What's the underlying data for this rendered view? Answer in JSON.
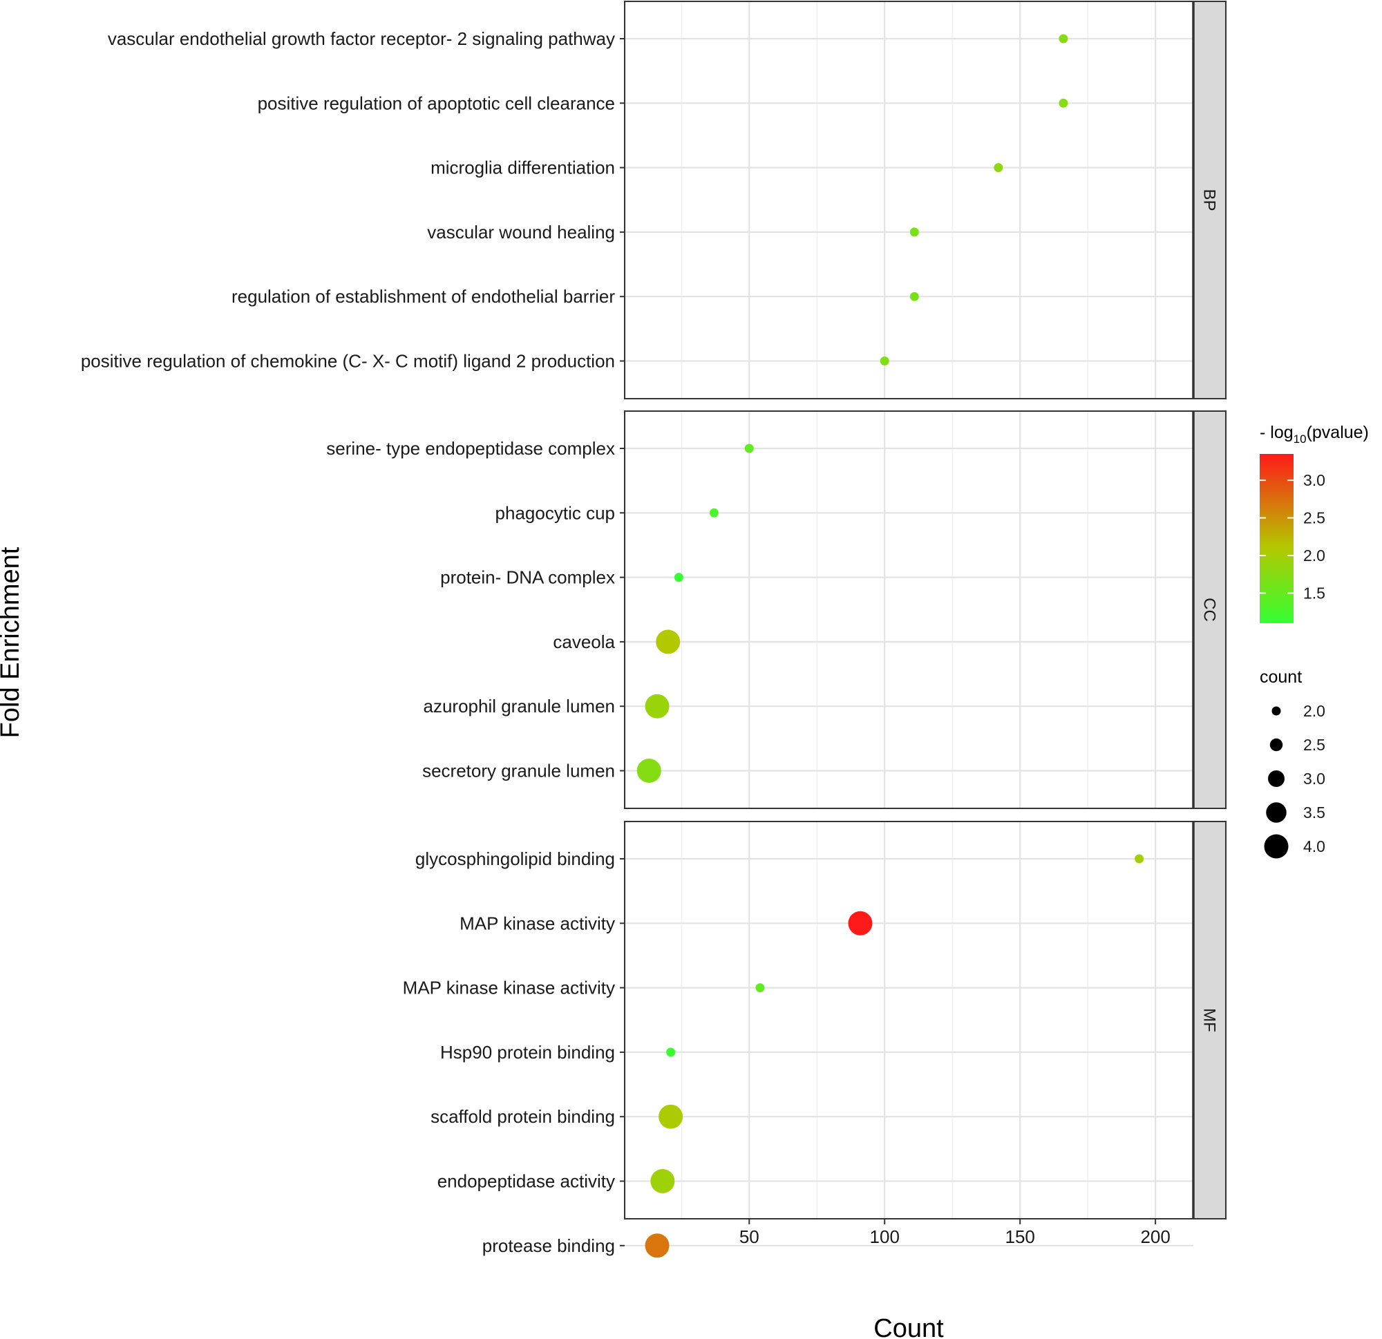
{
  "chart_data": {
    "type": "scatter",
    "xlabel": "Count",
    "ylabel": "Fold Enrichment",
    "xlim": [
      4,
      214
    ],
    "x_ticks": [
      50,
      100,
      150,
      200
    ],
    "grid": true,
    "legend_position": "right",
    "color_legend": {
      "title_prefix": "- log",
      "title_sub": "10",
      "title_suffix": "(pvalue)",
      "min": 1.1,
      "max": 3.35,
      "ticks": [
        3.0,
        2.5,
        2.0,
        1.5
      ],
      "tick_labels": [
        "3.0",
        "2.5",
        "2.0",
        "1.5"
      ],
      "low_color": "#33ff33",
      "mid_color": "#b4c800",
      "high_color": "#ff1a1a"
    },
    "size_legend": {
      "title": "count",
      "values": [
        2.0,
        2.5,
        3.0,
        3.5,
        4.0
      ],
      "labels": [
        "2.0",
        "2.5",
        "3.0",
        "3.5",
        "4.0"
      ]
    },
    "panels": [
      {
        "name": "BP",
        "terms": [
          {
            "label": "vascular endothelial growth factor receptor- 2 signaling pathway",
            "x": 166,
            "count": 2,
            "pvalue": 1.75
          },
          {
            "label": "positive regulation of apoptotic cell clearance",
            "x": 166,
            "count": 2,
            "pvalue": 1.75
          },
          {
            "label": "microglia differentiation",
            "x": 142,
            "count": 2,
            "pvalue": 1.8
          },
          {
            "label": "vascular wound healing",
            "x": 111,
            "count": 2,
            "pvalue": 1.65
          },
          {
            "label": "regulation of establishment of endothelial barrier",
            "x": 111,
            "count": 2,
            "pvalue": 1.65
          },
          {
            "label": "positive regulation of chemokine (C- X- C motif) ligand 2 production",
            "x": 100,
            "count": 2,
            "pvalue": 1.7
          }
        ]
      },
      {
        "name": "CC",
        "terms": [
          {
            "label": "serine- type endopeptidase complex",
            "x": 50,
            "count": 2,
            "pvalue": 1.45
          },
          {
            "label": "phagocytic cup",
            "x": 37,
            "count": 2,
            "pvalue": 1.3
          },
          {
            "label": "protein- DNA complex",
            "x": 24,
            "count": 2,
            "pvalue": 1.12
          },
          {
            "label": "caveola",
            "x": 20,
            "count": 4,
            "pvalue": 2.1
          },
          {
            "label": "azurophil granule lumen",
            "x": 16,
            "count": 4,
            "pvalue": 1.9
          },
          {
            "label": "secretory granule lumen",
            "x": 13,
            "count": 4,
            "pvalue": 1.75
          }
        ]
      },
      {
        "name": "MF",
        "terms": [
          {
            "label": "glycosphingolipid binding",
            "x": 194,
            "count": 2,
            "pvalue": 2.0
          },
          {
            "label": "MAP kinase activity",
            "x": 91,
            "count": 4,
            "pvalue": 3.35
          },
          {
            "label": "MAP kinase kinase activity",
            "x": 54,
            "count": 2,
            "pvalue": 1.45
          },
          {
            "label": "Hsp90 protein binding",
            "x": 21,
            "count": 2,
            "pvalue": 1.15
          },
          {
            "label": "scaffold protein binding",
            "x": 21,
            "count": 4,
            "pvalue": 2.05
          },
          {
            "label": "endopeptidase activity",
            "x": 18,
            "count": 4,
            "pvalue": 1.95
          },
          {
            "label": "protease binding",
            "x": 16,
            "count": 4,
            "pvalue": 2.7
          }
        ]
      }
    ]
  }
}
